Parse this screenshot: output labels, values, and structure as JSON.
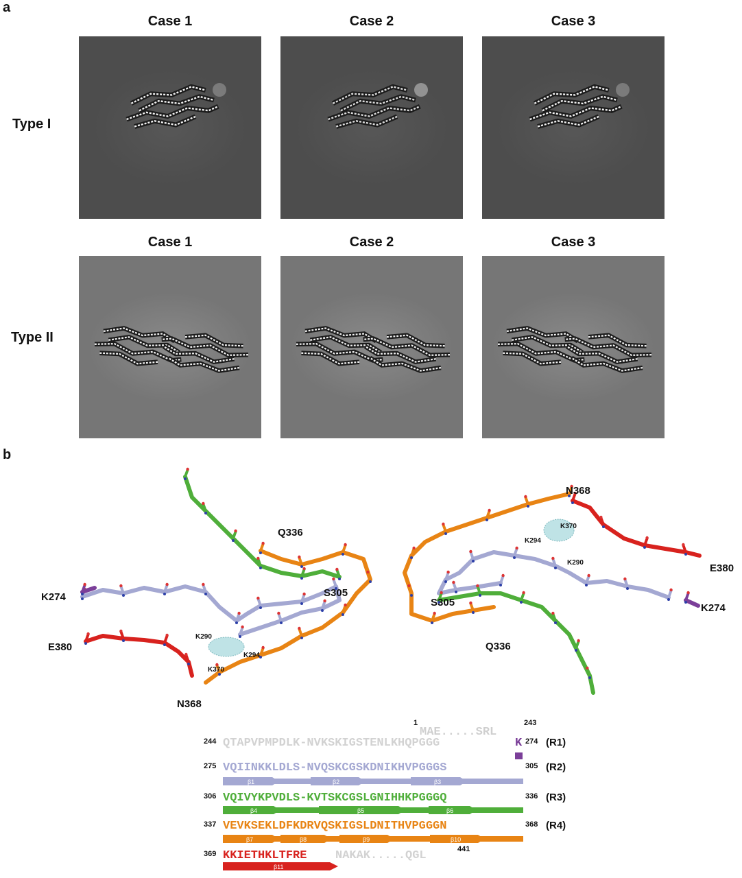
{
  "panel_a": {
    "letter": "a",
    "columns": [
      "Case 1",
      "Case 2",
      "Case 3"
    ],
    "rows": [
      {
        "label": "Type I",
        "columns": [
          "Case 1",
          "Case 2",
          "Case 3"
        ]
      },
      {
        "label": "Type II",
        "columns": [
          "Case 1",
          "Case 2",
          "Case 3"
        ]
      }
    ]
  },
  "panel_b": {
    "letter": "b",
    "residue_labels": {
      "left": {
        "k274": "K274",
        "e380": "E380",
        "n368": "N368",
        "q336": "Q336",
        "s305": "S305",
        "k290": "K290",
        "k294": "K294",
        "k370": "K370"
      },
      "right": {
        "n368": "N368",
        "k370": "K370",
        "k294": "K294",
        "k290": "K290",
        "e380": "E380",
        "k274": "K274",
        "s305": "S305",
        "q336": "Q336"
      }
    },
    "colors": {
      "R1": "#7b3f99",
      "R2": "#a4a8d2",
      "R3": "#4fae3a",
      "R4": "#e88414",
      "C": "#d8221e",
      "grey": "#c8c8c8"
    },
    "sequence": {
      "top": {
        "start": "1",
        "text": "MAE.....SRL",
        "end": "243"
      },
      "rows": [
        {
          "start": "244",
          "grey": "QTAPVPMPDLK-NVKSKIGSTENLKHQPGGG",
          "colored": "K",
          "end": "274",
          "tag": "(R1)"
        },
        {
          "start": "275",
          "colored": "VQIINKKLDLS-NVQSKCGSKDNIKHVPGGGS",
          "end": "305",
          "tag": "(R2)",
          "strands": [
            "β1",
            "β2",
            "β3"
          ]
        },
        {
          "start": "306",
          "colored": "VQIVYKPVDLS-KVTSKCGSLGNIHHKPGGGQ",
          "end": "336",
          "tag": "(R3)",
          "strands": [
            "β4",
            "β5",
            "β6"
          ]
        },
        {
          "start": "337",
          "colored": "VEVKSEKLDFKDRVQSKIGSLDNITHVPGGGN",
          "end": "368",
          "tag": "(R4)",
          "strands": [
            "β7",
            "β8",
            "β9",
            "β10"
          ]
        },
        {
          "start": "369",
          "colored": "KKIETHKLTFRE",
          "grey": "NAKAK.....QGL",
          "end": "441",
          "strands": [
            "β11"
          ]
        }
      ]
    }
  }
}
